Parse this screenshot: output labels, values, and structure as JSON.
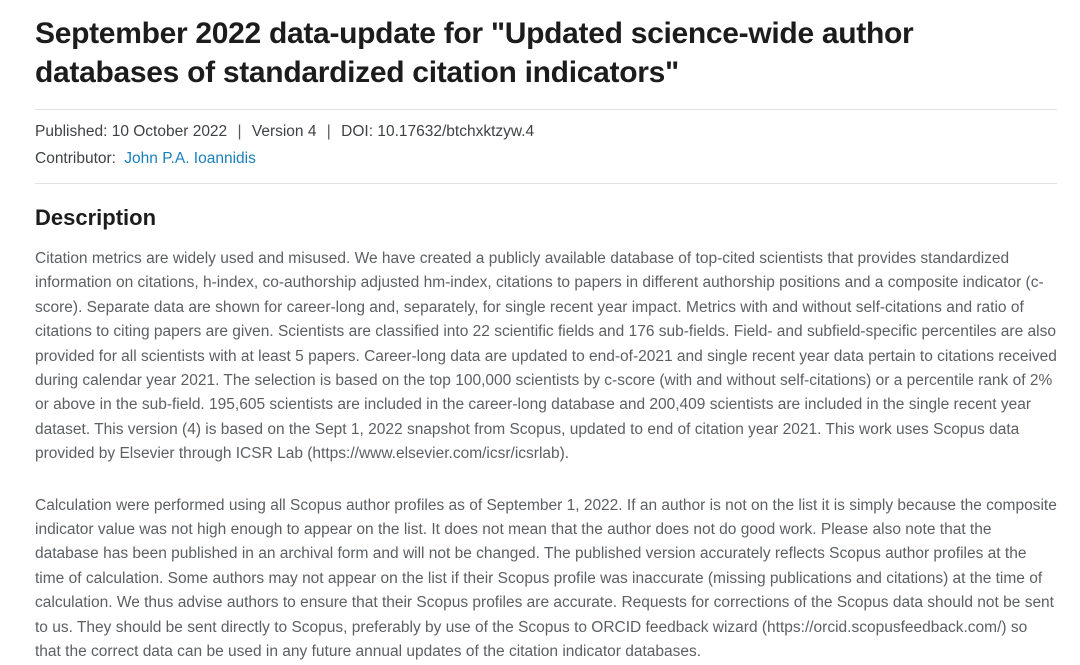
{
  "header": {
    "title": "September 2022 data-update for \"Updated science-wide author databases of standardized citation indicators\""
  },
  "meta": {
    "published_label": "Published:",
    "published_value": "10 October 2022",
    "separator": "|",
    "version": "Version 4",
    "doi_label": "DOI:",
    "doi_value": "10.17632/btchxktzyw.4",
    "contributor_label": "Contributor:",
    "contributor_name": "John P.A. Ioannidis"
  },
  "description": {
    "heading": "Description",
    "paragraphs": [
      "Citation metrics are widely used and misused. We have created a publicly available database of top-cited scientists that provides standardized information on citations, h-index, co-authorship adjusted hm-index, citations to papers in different authorship positions and a composite indicator (c-score). Separate data are shown for career-long and, separately, for single recent year impact. Metrics with and without self-citations and ratio of citations to citing papers are given. Scientists are classified into 22 scientific fields and 176 sub-fields. Field- and subfield-specific percentiles are also provided for all scientists with at least 5 papers. Career-long data are updated to end-of-2021 and single recent year data pertain to citations received during calendar year 2021. The selection is based on the top 100,000 scientists by c-score (with and without self-citations) or a percentile rank of 2% or above in the sub-field. 195,605 scientists are included in the career-long database and 200,409 scientists are included in the single recent year dataset. This version (4) is based on the Sept 1, 2022 snapshot from Scopus, updated to end of citation year 2021. This work uses Scopus data provided by Elsevier through ICSR Lab (https://www.elsevier.com/icsr/icsrlab).",
      "Calculation were performed using all Scopus author profiles as of September 1, 2022. If an author is not on the list it is simply because the composite indicator value was not high enough to appear on the list. It does not mean that the author does not do good work.  Please also note that the database has been published in an archival form and will not be changed. The published version accurately reflects Scopus author profiles at the time of calculation.  Some authors may not appear on the list if their Scopus profile was inaccurate (missing publications and citations) at the time of calculation. We thus advise authors to ensure that their Scopus profiles are accurate. Requests for corrections of the Scopus data should not be sent to us. They should be sent directly to Scopus, preferably by use of the Scopus to ORCID feedback wizard (https://orcid.scopusfeedback.com/) so that the correct data can be used in any future annual updates of the citation indicator databases."
    ]
  },
  "colors": {
    "title_text": "#1c1c1c",
    "body_text": "#5c6063",
    "meta_text": "#3f4244",
    "link": "#1b80bd",
    "divider": "#e2e2e2",
    "background": "#ffffff"
  }
}
